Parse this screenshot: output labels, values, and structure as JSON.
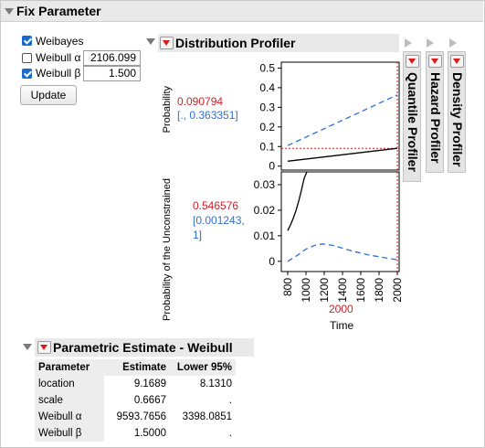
{
  "panel": {
    "title": "Fix Parameter"
  },
  "fix_options": [
    {
      "label": "Weibayes",
      "checked": true
    },
    {
      "label": "Weibull α",
      "checked": false,
      "value": "2106.099"
    },
    {
      "label": "Weibull β",
      "checked": true,
      "value": "1.500"
    }
  ],
  "update_label": "Update",
  "profiler": {
    "title": "Distribution Profiler",
    "tabs": [
      "Quantile Profiler",
      "Hazard Profiler",
      "Density Profiler"
    ],
    "prob_label": "Probability",
    "prob_value": "0.090794",
    "prob_ci": "[., 0.363351]",
    "unc_label": "Probability of the Unconstrained",
    "unc_value": "0.546576",
    "unc_ci_a": "[0.001243,",
    "unc_ci_b": "1]",
    "x_current": "2000",
    "x_label": "Time"
  },
  "chart_data": [
    {
      "type": "line",
      "name": "Probability",
      "x_ticks": [
        "800",
        "1000",
        "1200",
        "1400",
        "1600",
        "1800",
        "2000"
      ],
      "y_ticks": [
        "0",
        "0.1",
        "0.2",
        "0.3",
        "0.4",
        "0.5"
      ],
      "xlim": [
        730,
        2020
      ],
      "ylim": [
        -0.02,
        0.53
      ],
      "current_x": 2000,
      "current_y": 0.090794,
      "series": [
        {
          "style": "solid",
          "color": "#000000",
          "x": [
            800,
            2000
          ],
          "y": [
            0.025,
            0.091
          ]
        },
        {
          "style": "dashed",
          "color": "#2e6fd8",
          "x": [
            800,
            2000
          ],
          "y": [
            0.105,
            0.363
          ]
        }
      ]
    },
    {
      "type": "line",
      "name": "Probability of the Unconstrained",
      "x_ticks": [
        "800",
        "1000",
        "1200",
        "1400",
        "1600",
        "1800",
        "2000"
      ],
      "y_ticks": [
        "0",
        "0.01",
        "0.02",
        "0.03"
      ],
      "xlim": [
        730,
        2020
      ],
      "ylim": [
        -0.004,
        0.035
      ],
      "current_x": 2000,
      "series": [
        {
          "style": "solid",
          "color": "#000000",
          "x": [
            800,
            830,
            860,
            890,
            920,
            950,
            980,
            1010
          ],
          "y": [
            0.012,
            0.0142,
            0.0168,
            0.0198,
            0.0235,
            0.0278,
            0.0325,
            0.036
          ]
        },
        {
          "style": "dashed",
          "color": "#2e6fd8",
          "x": [
            800,
            900,
            1000,
            1100,
            1180,
            1300,
            1500,
            1700,
            1900,
            2000
          ],
          "y": [
            0.0,
            0.0022,
            0.0048,
            0.0063,
            0.0068,
            0.0062,
            0.0041,
            0.0024,
            0.0012,
            0.0006
          ]
        }
      ]
    }
  ],
  "estimates": {
    "title": "Parametric Estimate - Weibull",
    "headers": [
      "Parameter",
      "Estimate",
      "Lower 95%"
    ],
    "rows": [
      [
        "location",
        "9.1689",
        "8.1310"
      ],
      [
        "scale",
        "0.6667",
        "."
      ],
      [
        "Weibull α",
        "9593.7656",
        "3398.0851"
      ],
      [
        "Weibull β",
        "1.5000",
        "."
      ]
    ]
  }
}
